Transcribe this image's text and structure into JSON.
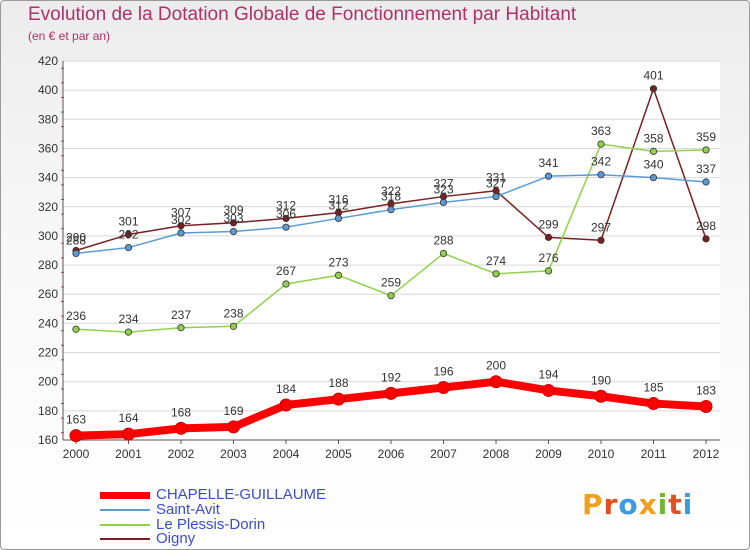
{
  "header": {
    "title": "Evolution de la Dotation Globale de Fonctionnement par Habitant",
    "subtitle": "(en € et par an)"
  },
  "logo": {
    "text": "Proxiti",
    "colors": [
      "#f0a020",
      "#e05020",
      "#3a9be0",
      "#f0a020",
      "#70b830",
      "#e05020",
      "#3a9be0"
    ]
  },
  "chart_data": {
    "type": "line",
    "title": "Evolution de la Dotation Globale de Fonctionnement par Habitant",
    "subtitle": "(en € et par an)",
    "xlabel": "",
    "ylabel": "",
    "x": [
      "2000",
      "2001",
      "2002",
      "2003",
      "2004",
      "2005",
      "2006",
      "2007",
      "2008",
      "2009",
      "2010",
      "2011",
      "2012"
    ],
    "ylim": [
      160,
      420
    ],
    "yticks": [
      160,
      180,
      200,
      220,
      240,
      260,
      280,
      300,
      320,
      340,
      360,
      380,
      400,
      420
    ],
    "grid": "horizontal",
    "legend_position": "bottom-left",
    "series": [
      {
        "name": "CHAPELLE-GUILLAUME",
        "color": "#ff0000",
        "values": [
          163,
          164,
          168,
          169,
          184,
          188,
          192,
          196,
          200,
          194,
          190,
          185,
          183
        ]
      },
      {
        "name": "Saint-Avit",
        "color": "#5a9bd4",
        "values": [
          288,
          292,
          302,
          303,
          306,
          312,
          318,
          323,
          327,
          341,
          342,
          340,
          337
        ]
      },
      {
        "name": "Le Plessis-Dorin",
        "color": "#8fd24a",
        "values": [
          236,
          234,
          237,
          238,
          267,
          273,
          259,
          288,
          274,
          276,
          363,
          358,
          359
        ]
      },
      {
        "name": "Oigny",
        "color": "#7a2020",
        "values": [
          290,
          301,
          307,
          309,
          312,
          316,
          322,
          327,
          331,
          299,
          297,
          401,
          298
        ]
      }
    ]
  }
}
